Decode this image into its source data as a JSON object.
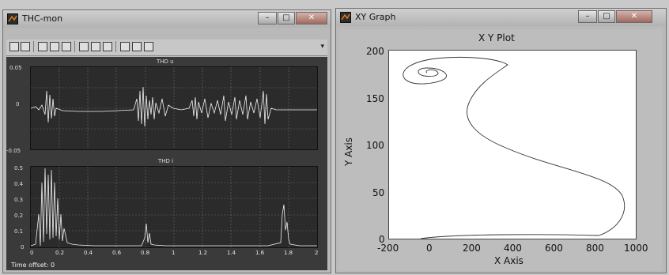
{
  "left_window": {
    "title": "THC-mon",
    "scope1": {
      "title": "THD u",
      "y_ticks": [
        "0.05",
        "0",
        "-0.05"
      ]
    },
    "scope2": {
      "title": "THD i",
      "y_ticks": [
        "0.5",
        "0.4",
        "0.3",
        "0.2",
        "0.1",
        "0"
      ],
      "x_ticks": [
        "0",
        "0.2",
        "0.4",
        "0.6",
        "0.8",
        "1",
        "1.2",
        "1.4",
        "1.6",
        "1.8",
        "2"
      ]
    },
    "status": "Time offset:  0"
  },
  "right_window": {
    "title": "XY Graph",
    "plot_title": "X Y Plot",
    "x_label": "X Axis",
    "y_label": "Y Axis",
    "x_ticks": [
      "-200",
      "0",
      "200",
      "400",
      "600",
      "800",
      "1000"
    ],
    "y_ticks": [
      "200",
      "150",
      "100",
      "50",
      "0"
    ]
  },
  "icons": {
    "matlab": "matlab-logo-icon",
    "minimize": "minimize-icon",
    "maximize": "maximize-icon",
    "close": "close-icon"
  }
}
